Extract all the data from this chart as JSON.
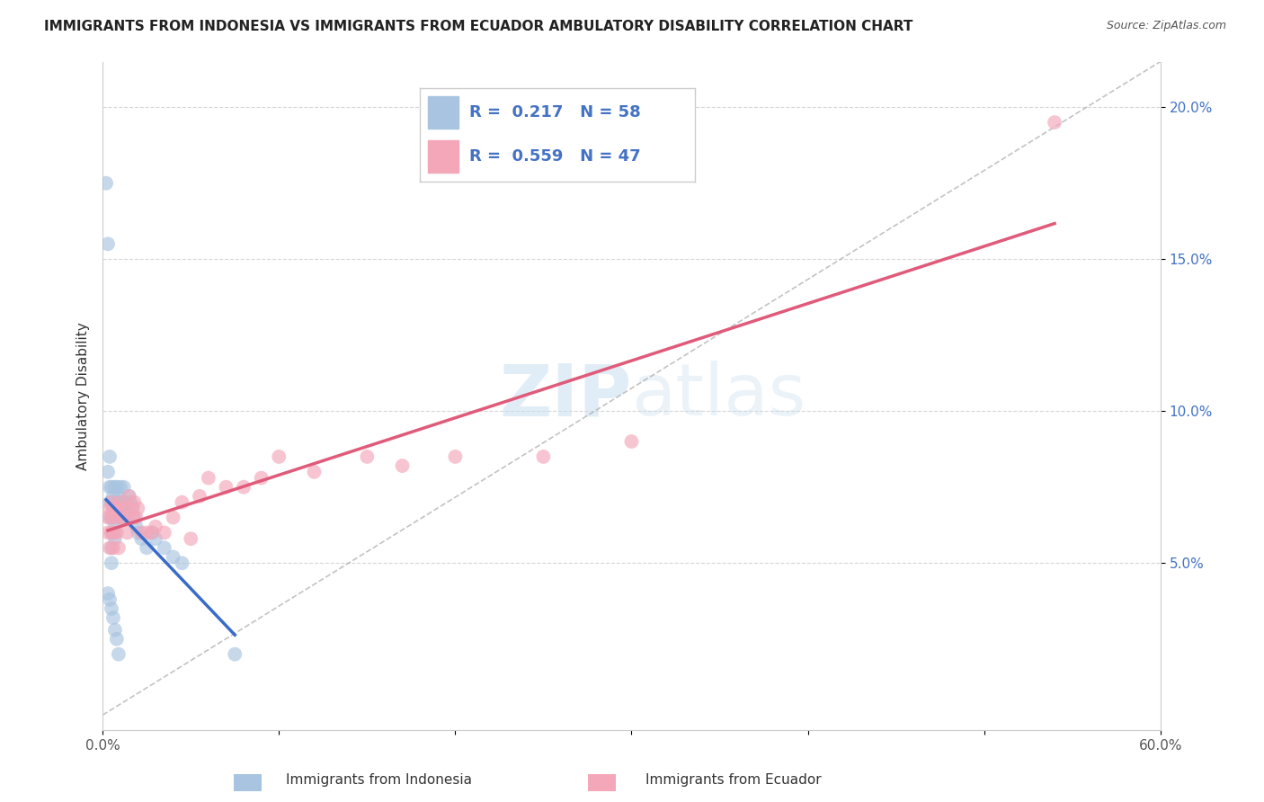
{
  "title": "IMMIGRANTS FROM INDONESIA VS IMMIGRANTS FROM ECUADOR AMBULATORY DISABILITY CORRELATION CHART",
  "source": "Source: ZipAtlas.com",
  "ylabel": "Ambulatory Disability",
  "xlim": [
    0.0,
    0.6
  ],
  "ylim": [
    -0.005,
    0.215
  ],
  "xtick_positions": [
    0.0,
    0.1,
    0.2,
    0.3,
    0.4,
    0.5,
    0.6
  ],
  "xtick_labels": [
    "0.0%",
    "",
    "",
    "",
    "",
    "",
    "60.0%"
  ],
  "ytick_positions": [
    0.05,
    0.1,
    0.15,
    0.2
  ],
  "ytick_labels": [
    "5.0%",
    "10.0%",
    "15.0%",
    "20.0%"
  ],
  "legend_label1": "Immigrants from Indonesia",
  "legend_label2": "Immigrants from Ecuador",
  "R1": 0.217,
  "N1": 58,
  "R2": 0.559,
  "N2": 47,
  "indonesia_color": "#a8c4e0",
  "ecuador_color": "#f4a7b9",
  "indonesia_line_color": "#3a6bc9",
  "ecuador_line_color": "#e05a7a",
  "indonesia_x": [
    0.002,
    0.003,
    0.003,
    0.004,
    0.004,
    0.004,
    0.004,
    0.005,
    0.005,
    0.005,
    0.005,
    0.005,
    0.005,
    0.006,
    0.006,
    0.006,
    0.006,
    0.007,
    0.007,
    0.007,
    0.007,
    0.007,
    0.008,
    0.008,
    0.008,
    0.009,
    0.009,
    0.01,
    0.01,
    0.01,
    0.011,
    0.011,
    0.012,
    0.012,
    0.013,
    0.013,
    0.014,
    0.015,
    0.016,
    0.017,
    0.018,
    0.019,
    0.02,
    0.022,
    0.025,
    0.028,
    0.03,
    0.035,
    0.04,
    0.045,
    0.003,
    0.004,
    0.005,
    0.006,
    0.007,
    0.008,
    0.009,
    0.075
  ],
  "indonesia_y": [
    0.175,
    0.155,
    0.08,
    0.085,
    0.075,
    0.07,
    0.065,
    0.075,
    0.07,
    0.065,
    0.06,
    0.055,
    0.05,
    0.072,
    0.068,
    0.065,
    0.06,
    0.075,
    0.07,
    0.068,
    0.062,
    0.058,
    0.075,
    0.07,
    0.065,
    0.072,
    0.068,
    0.075,
    0.07,
    0.065,
    0.07,
    0.065,
    0.075,
    0.068,
    0.07,
    0.065,
    0.068,
    0.072,
    0.07,
    0.068,
    0.065,
    0.062,
    0.06,
    0.058,
    0.055,
    0.06,
    0.058,
    0.055,
    0.052,
    0.05,
    0.04,
    0.038,
    0.035,
    0.032,
    0.028,
    0.025,
    0.02,
    0.02
  ],
  "ecuador_x": [
    0.003,
    0.003,
    0.004,
    0.004,
    0.005,
    0.005,
    0.005,
    0.006,
    0.006,
    0.007,
    0.007,
    0.008,
    0.008,
    0.009,
    0.009,
    0.01,
    0.011,
    0.012,
    0.013,
    0.014,
    0.015,
    0.016,
    0.017,
    0.018,
    0.019,
    0.02,
    0.022,
    0.025,
    0.028,
    0.03,
    0.035,
    0.04,
    0.045,
    0.05,
    0.055,
    0.06,
    0.07,
    0.08,
    0.09,
    0.1,
    0.12,
    0.15,
    0.17,
    0.2,
    0.25,
    0.3,
    0.54
  ],
  "ecuador_y": [
    0.065,
    0.06,
    0.068,
    0.055,
    0.07,
    0.065,
    0.06,
    0.068,
    0.055,
    0.068,
    0.06,
    0.065,
    0.06,
    0.068,
    0.055,
    0.07,
    0.065,
    0.068,
    0.065,
    0.06,
    0.072,
    0.068,
    0.065,
    0.07,
    0.065,
    0.068,
    0.06,
    0.06,
    0.06,
    0.062,
    0.06,
    0.065,
    0.07,
    0.058,
    0.072,
    0.078,
    0.075,
    0.075,
    0.078,
    0.085,
    0.08,
    0.085,
    0.082,
    0.085,
    0.085,
    0.09,
    0.195
  ]
}
